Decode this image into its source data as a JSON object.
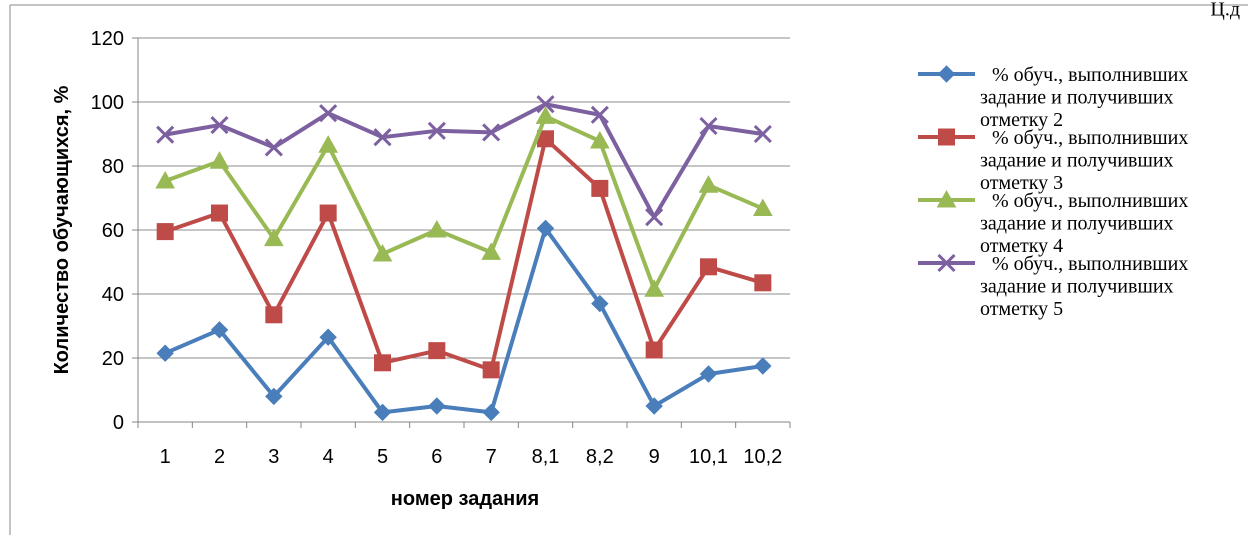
{
  "corner_fragment": "Ц.д",
  "chart_data": {
    "type": "line",
    "title": "",
    "xlabel": "номер задания",
    "ylabel": "Количество обучающихся, %",
    "ylim": [
      0,
      120
    ],
    "yticks": [
      "0",
      "20",
      "40",
      "60",
      "80",
      "100",
      "120"
    ],
    "grid": true,
    "legend_position": "right",
    "categories": [
      "1",
      "2",
      "3",
      "4",
      "5",
      "6",
      "7",
      "8,1",
      "8,2",
      "9",
      "10,1",
      "10,2"
    ],
    "series": [
      {
        "legend_lines": [
          "% обуч., выполнивших",
          "задание и получивших",
          "отметку 2"
        ],
        "color": "#4a7ebb",
        "marker": "diamond",
        "values": [
          21.5,
          28.8,
          8,
          26.5,
          3,
          5,
          3,
          60.5,
          37,
          5,
          15,
          17.5
        ]
      },
      {
        "legend_lines": [
          "% обуч., выполнивших",
          "задание и получивших",
          "отметку  3"
        ],
        "color": "#be4b48",
        "marker": "square",
        "values": [
          59.5,
          65.3,
          33.5,
          65.3,
          18.5,
          22.3,
          16.3,
          88.5,
          73,
          22.5,
          48.5,
          43.5
        ]
      },
      {
        "legend_lines": [
          "% обуч., выполнивших",
          "задание и получивших",
          "отметку  4"
        ],
        "color": "#98b954",
        "marker": "triangle",
        "values": [
          75.3,
          81.5,
          57.3,
          86.5,
          52.5,
          60,
          53,
          95.5,
          87.8,
          41.5,
          74,
          66.7
        ]
      },
      {
        "legend_lines": [
          "% обуч., выполнивших",
          "задание и получивших",
          "отметку 5"
        ],
        "color": "#7d60a0",
        "marker": "x",
        "values": [
          89.8,
          92.8,
          85.8,
          96.5,
          89,
          91,
          90.5,
          99.3,
          96,
          64,
          92.5,
          90
        ]
      }
    ]
  }
}
